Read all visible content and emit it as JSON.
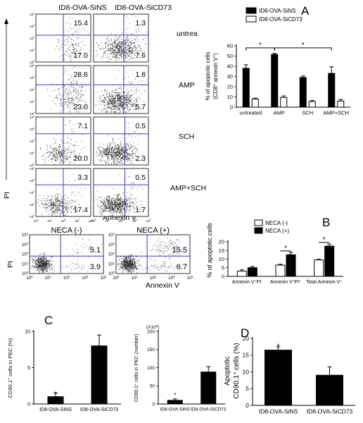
{
  "panel_letters": {
    "a": "A",
    "b": "B",
    "c": "C",
    "d": "D"
  },
  "flow_a": {
    "col_labels": [
      "ID8-OVA-SiNS",
      "ID8-OVA-SiCD73"
    ],
    "row_labels": [
      "untrea",
      "AMP",
      "SCH",
      "AMP+SCH"
    ],
    "rows": [
      {
        "left": [
          "15.4",
          "17.0"
        ],
        "right": [
          "1.3",
          "7.6"
        ]
      },
      {
        "left": [
          "28.6",
          "23.0"
        ],
        "right": [
          "1.6",
          "5.7"
        ]
      },
      {
        "left": [
          "7.1",
          "20.0"
        ],
        "right": [
          "0.5",
          "2.3"
        ]
      },
      {
        "left": [
          "3.3",
          "17.4"
        ],
        "right": [
          "0.5",
          "1.7"
        ]
      }
    ],
    "xlabel": "Annexin V",
    "ylabel": "PI",
    "tick_labels": [
      "10",
      "10",
      "10",
      "10",
      "10"
    ],
    "tick_exps": [
      "0",
      "1",
      "2",
      "3",
      "4"
    ]
  },
  "flow_b": {
    "plots": [
      {
        "title": "NECA (-)",
        "upper_right": "5.1",
        "lower_right": "3.9"
      },
      {
        "title": "NECA (+)",
        "upper_right": "15.5",
        "lower_right": "6.7"
      }
    ],
    "xlabel": "Annexin V",
    "ylabel": "PI",
    "tick_labels": [
      "10",
      "10",
      "10",
      "10",
      "10"
    ],
    "tick_exps": [
      "0",
      "1",
      "2",
      "3",
      "4"
    ]
  },
  "chart_data": [
    {
      "id": "A",
      "type": "bar",
      "categories": [
        "untreated",
        "AMP",
        "SCH",
        "AMP+SCH"
      ],
      "series": [
        {
          "name": "ID8-OVA-SiNS",
          "color": "#000000",
          "values": [
            38,
            51.5,
            29,
            33
          ],
          "errors": [
            3.5,
            1.2,
            1.5,
            6.5
          ]
        },
        {
          "name": "ID8-OVA-SiCD73",
          "color": "#ffffff",
          "values": [
            8,
            9.5,
            5.5,
            6
          ],
          "errors": [
            0.8,
            1.5,
            1,
            1.5
          ]
        }
      ],
      "ylabel": "% of apoptotic cells",
      "ylabel2": "(CD8+ annexin V+)",
      "yticks": [
        "0",
        "10",
        "20",
        "30",
        "40",
        "50",
        "60"
      ],
      "ylim": [
        0,
        60
      ],
      "significance": [
        "*",
        "*"
      ]
    },
    {
      "id": "B",
      "type": "bar",
      "categories": [
        "Annexin V+PI-",
        "Annexin V+PI+",
        "Total Annexin V+"
      ],
      "series": [
        {
          "name": "NECA (-)",
          "color": "#ffffff",
          "values": [
            3,
            6.5,
            9.5
          ],
          "errors": [
            0.8,
            0.5,
            0.4
          ]
        },
        {
          "name": "NECA (+)",
          "color": "#000000",
          "values": [
            5,
            12.5,
            17.5
          ],
          "errors": [
            0.8,
            1.5,
            1.2
          ]
        }
      ],
      "ylabel": "% of apoptotic cells",
      "yticks": [
        "0",
        "5",
        "10",
        "15",
        "20"
      ],
      "ylim": [
        0,
        20
      ],
      "significance": [
        "*",
        "*"
      ]
    },
    {
      "id": "C1",
      "type": "bar",
      "categories": [
        "ID8-OVA-SiNS",
        "ID8-OVA-SiCD73"
      ],
      "values": [
        1,
        8
      ],
      "errors": [
        0.5,
        1.5
      ],
      "ylabel": "CD90.1+ cells in PEC (%)",
      "yticks": [
        "0",
        "5",
        "10"
      ],
      "ylim": [
        0,
        10
      ],
      "significance": [
        "*"
      ]
    },
    {
      "id": "C2",
      "type": "bar",
      "categories": [
        "ID8-OVA-SiNS",
        "ID8-OVA-SiCD73"
      ],
      "values": [
        10,
        88
      ],
      "errors": [
        4,
        15
      ],
      "ylabel": "CD90.1+ cells in PEC (number)",
      "multiplier": "(X10",
      "multiplier_exp": "3",
      "multiplier_end": ")",
      "yticks": [
        "0",
        "50",
        "100",
        "150",
        "200"
      ],
      "ylim": [
        0,
        200
      ],
      "significance": [
        "*"
      ]
    },
    {
      "id": "D",
      "type": "bar",
      "categories": [
        "ID8-OVA-SiNS",
        "ID8-OVA-SiCD73"
      ],
      "values": [
        16.5,
        9
      ],
      "errors": [
        1,
        2.5
      ],
      "ylabel": "Apoptotic",
      "ylabel2": "CD90.1+ cells (%)",
      "yticks": [
        "0",
        "5",
        "10",
        "15",
        "20"
      ],
      "ylim": [
        0,
        20
      ],
      "significance": [
        "*"
      ]
    }
  ]
}
